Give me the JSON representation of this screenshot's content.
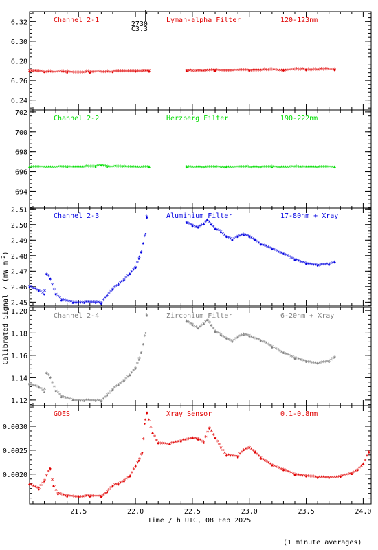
{
  "chart_data": {
    "type": "scatter",
    "xlabel": "Time / h UTC, 08 Feb 2025",
    "ylabel": "Calibrated Signal / (mW m",
    "ylabel_sup": "-2",
    "ylabel_close": ")",
    "note": "(1 minute averages)",
    "xlim": [
      21.07,
      24.07
    ],
    "xticks": [
      21.5,
      22.0,
      22.5,
      23.0,
      23.5,
      24.0
    ],
    "xtick_labels": [
      "21.5",
      "22.0",
      "22.5",
      "23.0",
      "23.5",
      "24.0"
    ],
    "marker_annotation": {
      "x": 22.09,
      "line1": "2730",
      "line2": "C3.3"
    },
    "panels": [
      {
        "channel": "Channel 2-1",
        "filter": "Lyman-alpha Filter",
        "band": "120-123nm",
        "color": "#e00000",
        "ylim": [
          6.23,
          6.33
        ],
        "yticks": [
          6.24,
          6.26,
          6.28,
          6.3,
          6.32
        ],
        "ytick_labels": [
          "6.24",
          "6.26",
          "6.28",
          "6.30",
          "6.32"
        ],
        "series": [
          {
            "x": [
              21.07,
              21.2,
              21.4,
              21.6,
              21.8,
              22.0,
              22.12
            ],
            "y": [
              6.269,
              6.2685,
              6.268,
              6.268,
              6.2685,
              6.269,
              6.269
            ]
          },
          {
            "x": [
              22.45,
              22.7,
              23.0,
              23.3,
              23.5,
              23.75
            ],
            "y": [
              6.2695,
              6.2698,
              6.27,
              6.2702,
              6.2705,
              6.2705
            ]
          }
        ]
      },
      {
        "channel": "Channel 2-2",
        "filter": "Herzberg Filter",
        "band": "190-222nm",
        "color": "#00dd00",
        "ylim": [
          692.3,
          702.2
        ],
        "yticks": [
          694,
          696,
          698,
          700,
          702
        ],
        "ytick_labels": [
          "694",
          "696",
          "698",
          "700",
          "702"
        ],
        "series": [
          {
            "x": [
              21.07,
              21.4,
              21.65,
              21.7,
              21.75,
              22.12
            ],
            "y": [
              696.4,
              696.4,
              696.45,
              696.6,
              696.45,
              696.4
            ]
          },
          {
            "x": [
              22.45,
              22.8,
              23.2,
              23.75
            ],
            "y": [
              696.4,
              696.4,
              696.4,
              696.4
            ]
          }
        ]
      },
      {
        "channel": "Channel 2-3",
        "filter": "Aluminium Filter",
        "band": "17-80nm + Xray",
        "color": "#0000e0",
        "ylim": [
          2.4475,
          2.511
        ],
        "yticks": [
          2.45,
          2.46,
          2.47,
          2.48,
          2.49,
          2.5,
          2.51
        ],
        "ytick_labels": [
          "2.45",
          "2.46",
          "2.47",
          "2.48",
          "2.49",
          "2.50",
          "2.51"
        ],
        "series": [
          {
            "x": [
              21.07,
              21.15,
              21.2,
              21.22,
              21.25,
              21.3,
              21.35,
              21.45,
              21.55,
              21.65,
              21.7,
              21.75,
              21.8,
              21.85,
              21.9,
              21.95,
              22.0,
              22.03,
              22.05,
              22.07,
              22.09,
              22.1
            ],
            "y": [
              2.4595,
              2.457,
              2.455,
              2.468,
              2.465,
              2.455,
              2.451,
              2.4495,
              2.4495,
              2.4495,
              2.449,
              2.454,
              2.458,
              2.461,
              2.464,
              2.468,
              2.472,
              2.478,
              2.482,
              2.488,
              2.494,
              2.5045
            ]
          },
          {
            "x": [
              22.45,
              22.5,
              22.55,
              22.6,
              22.63,
              22.66,
              22.7,
              22.75,
              22.8,
              22.85,
              22.9,
              22.95,
              23.0,
              23.05,
              23.1,
              23.2,
              23.3,
              23.4,
              23.5,
              23.6,
              23.7,
              23.75
            ],
            "y": [
              2.501,
              2.499,
              2.498,
              2.5,
              2.503,
              2.5,
              2.497,
              2.495,
              2.492,
              2.49,
              2.492,
              2.493,
              2.492,
              2.49,
              2.487,
              2.484,
              2.481,
              2.477,
              2.4745,
              2.4735,
              2.474,
              2.4755
            ]
          }
        ]
      },
      {
        "channel": "Channel 2-4",
        "filter": "Zirconium Filter",
        "band": "6-20nm + Xray",
        "color": "#808080",
        "ylim": [
          1.115,
          1.203
        ],
        "yticks": [
          1.12,
          1.14,
          1.16,
          1.18,
          1.2
        ],
        "ytick_labels": [
          "1.12",
          "1.14",
          "1.16",
          "1.18",
          "1.20"
        ],
        "series": [
          {
            "x": [
              21.07,
              21.15,
              21.2,
              21.22,
              21.25,
              21.3,
              21.35,
              21.45,
              21.55,
              21.65,
              21.7,
              21.75,
              21.8,
              21.85,
              21.9,
              21.95,
              22.0,
              22.03,
              22.05,
              22.07,
              22.09,
              22.1
            ],
            "y": [
              1.1335,
              1.131,
              1.127,
              1.144,
              1.14,
              1.128,
              1.1225,
              1.1195,
              1.119,
              1.119,
              1.1185,
              1.124,
              1.129,
              1.133,
              1.137,
              1.142,
              1.148,
              1.156,
              1.162,
              1.17,
              1.18,
              1.1955
            ]
          },
          {
            "x": [
              22.45,
              22.5,
              22.55,
              22.6,
              22.63,
              22.66,
              22.7,
              22.75,
              22.8,
              22.85,
              22.9,
              22.95,
              23.0,
              23.1,
              23.2,
              23.3,
              23.4,
              23.5,
              23.6,
              23.7,
              23.75
            ],
            "y": [
              1.19,
              1.187,
              1.184,
              1.188,
              1.1915,
              1.187,
              1.181,
              1.178,
              1.175,
              1.172,
              1.176,
              1.178,
              1.177,
              1.173,
              1.167,
              1.162,
              1.157,
              1.154,
              1.1525,
              1.154,
              1.158
            ]
          }
        ]
      },
      {
        "channel": "GOES",
        "filter": "Xray Sensor",
        "band": "0.1-0.8nm",
        "color": "#e00000",
        "ylim": [
          0.00138,
          0.00343
        ],
        "yticks": [
          0.002,
          0.0025,
          0.003
        ],
        "ytick_labels": [
          "0.0020",
          "0.0025",
          "0.0030"
        ],
        "series": [
          {
            "x": [
              21.07,
              21.15,
              21.2,
              21.25,
              21.28,
              21.32,
              21.4,
              21.5,
              21.6,
              21.7,
              21.75,
              21.8,
              21.85,
              21.9,
              21.95,
              22.0,
              22.03,
              22.06,
              22.08,
              22.1,
              22.15,
              22.2,
              22.3,
              22.4,
              22.5,
              22.55,
              22.6,
              22.65,
              22.7,
              22.75,
              22.8,
              22.9,
              22.95,
              23.0,
              23.05,
              23.1,
              23.2,
              23.3,
              23.4,
              23.5,
              23.6,
              23.7,
              23.8,
              23.9,
              23.95,
              24.0,
              24.05
            ],
            "y": [
              0.00178,
              0.00168,
              0.00185,
              0.00212,
              0.00175,
              0.00158,
              0.00153,
              0.00152,
              0.00153,
              0.00152,
              0.00162,
              0.00175,
              0.00178,
              0.00185,
              0.00195,
              0.00215,
              0.00228,
              0.00245,
              0.00305,
              0.00327,
              0.00285,
              0.00264,
              0.00262,
              0.00268,
              0.00275,
              0.00272,
              0.00265,
              0.00295,
              0.00275,
              0.00255,
              0.00238,
              0.00235,
              0.0025,
              0.00255,
              0.00245,
              0.00232,
              0.00218,
              0.00208,
              0.00198,
              0.00195,
              0.00192,
              0.00192,
              0.00194,
              0.002,
              0.00208,
              0.0022,
              0.00245
            ]
          }
        ]
      }
    ]
  }
}
